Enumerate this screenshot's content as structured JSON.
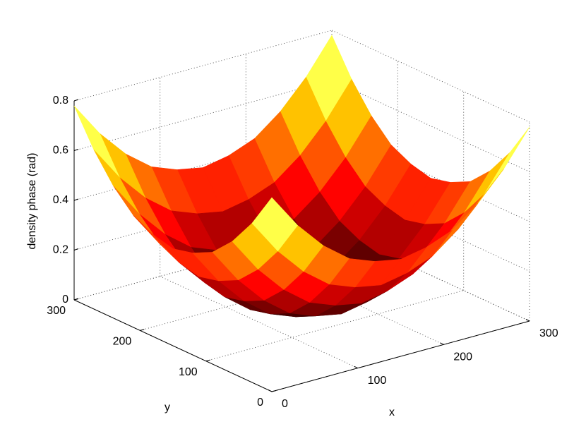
{
  "chart_data": {
    "type": "surface",
    "x": [
      0,
      30,
      60,
      90,
      120,
      150,
      180,
      210,
      240,
      270,
      300
    ],
    "y": [
      0,
      30,
      60,
      90,
      120,
      150,
      180,
      210,
      240,
      270,
      300
    ],
    "z": [
      [
        0.78,
        0.64,
        0.53,
        0.45,
        0.41,
        0.39,
        0.41,
        0.45,
        0.53,
        0.64,
        0.78
      ],
      [
        0.64,
        0.5,
        0.39,
        0.31,
        0.27,
        0.25,
        0.27,
        0.31,
        0.39,
        0.5,
        0.64
      ],
      [
        0.53,
        0.39,
        0.28,
        0.2,
        0.16,
        0.14,
        0.16,
        0.2,
        0.28,
        0.39,
        0.53
      ],
      [
        0.45,
        0.31,
        0.2,
        0.12,
        0.08,
        0.06,
        0.08,
        0.12,
        0.2,
        0.31,
        0.45
      ],
      [
        0.41,
        0.27,
        0.16,
        0.08,
        0.04,
        0.02,
        0.04,
        0.08,
        0.16,
        0.27,
        0.41
      ],
      [
        0.39,
        0.25,
        0.14,
        0.06,
        0.02,
        0,
        0.02,
        0.06,
        0.14,
        0.25,
        0.39
      ],
      [
        0.41,
        0.27,
        0.16,
        0.08,
        0.04,
        0.02,
        0.04,
        0.08,
        0.16,
        0.27,
        0.41
      ],
      [
        0.45,
        0.31,
        0.2,
        0.12,
        0.08,
        0.06,
        0.08,
        0.12,
        0.2,
        0.31,
        0.45
      ],
      [
        0.53,
        0.39,
        0.28,
        0.2,
        0.16,
        0.14,
        0.16,
        0.2,
        0.28,
        0.39,
        0.53
      ],
      [
        0.64,
        0.5,
        0.39,
        0.31,
        0.27,
        0.25,
        0.27,
        0.31,
        0.39,
        0.5,
        0.64
      ],
      [
        0.78,
        0.64,
        0.53,
        0.45,
        0.41,
        0.39,
        0.41,
        0.45,
        0.53,
        0.64,
        0.78
      ]
    ],
    "xlim": [
      0,
      300
    ],
    "ylim": [
      0,
      300
    ],
    "zlim": [
      0,
      0.8
    ],
    "xticks": [
      0,
      100,
      200,
      300
    ],
    "yticks": [
      0,
      100,
      200,
      300
    ],
    "zticks": [
      0,
      0.2,
      0.4,
      0.6,
      0.8
    ],
    "xlabel": "x",
    "ylabel": "y",
    "zlabel": "density phase (rad)",
    "colormap": "hot",
    "grid": true
  }
}
